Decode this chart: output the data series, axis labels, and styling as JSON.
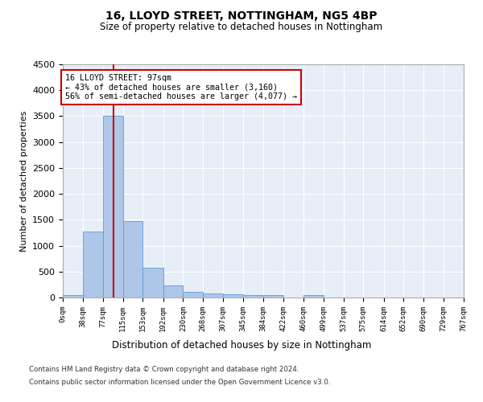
{
  "title1": "16, LLOYD STREET, NOTTINGHAM, NG5 4BP",
  "title2": "Size of property relative to detached houses in Nottingham",
  "xlabel": "Distribution of detached houses by size in Nottingham",
  "ylabel": "Number of detached properties",
  "bar_color": "#aec6e8",
  "bar_edge_color": "#5a9fd4",
  "vline_color": "#cc0000",
  "vline_x": 97,
  "annotation_text": "16 LLOYD STREET: 97sqm\n← 43% of detached houses are smaller (3,160)\n56% of semi-detached houses are larger (4,077) →",
  "annotation_box_color": "#cc0000",
  "bin_edges": [
    0,
    38,
    77,
    115,
    153,
    192,
    230,
    268,
    307,
    345,
    384,
    422,
    460,
    499,
    537,
    575,
    614,
    652,
    690,
    729,
    767
  ],
  "bin_counts": [
    40,
    1270,
    3500,
    1480,
    575,
    240,
    115,
    80,
    55,
    45,
    45,
    0,
    45,
    0,
    0,
    0,
    0,
    0,
    0,
    0
  ],
  "ylim": [
    0,
    4500
  ],
  "yticks": [
    0,
    500,
    1000,
    1500,
    2000,
    2500,
    3000,
    3500,
    4000,
    4500
  ],
  "footer1": "Contains HM Land Registry data © Crown copyright and database right 2024.",
  "footer2": "Contains public sector information licensed under the Open Government Licence v3.0.",
  "bg_color": "#e8eef8",
  "fig_bg_color": "#ffffff"
}
